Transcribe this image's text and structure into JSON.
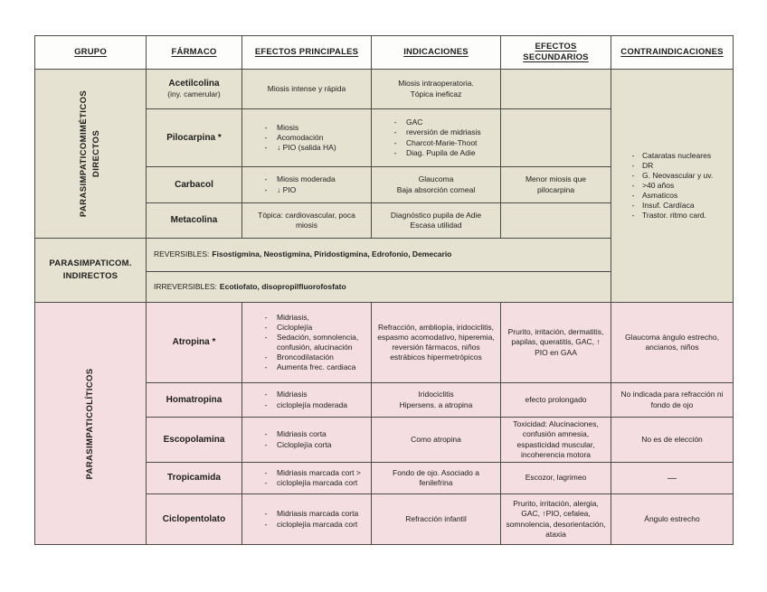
{
  "ui": {
    "dash": "-"
  },
  "colors": {
    "beige": "#e6e2d2",
    "pink": "#f4dee1",
    "border": "#4b4b47",
    "header_bg": "#fdfdfc"
  },
  "header": {
    "grupo": "GRUPO",
    "farmaco": "FÁRMACO",
    "efectos_principales": "EFECTOS PRINCIPALES",
    "indicaciones": "INDICACIONES",
    "efectos_secundarios": "EFECTOS SECUNDARIOS",
    "contraindicaciones": "CONTRAINDICACIONES"
  },
  "directos": {
    "group_label": "PARASIMPATICOMIMÉTICOS\nDIRECTOS",
    "contraindicaciones": [
      "Cataratas nucleares",
      "DR",
      "G. Neovascular y uv.",
      ">40 años",
      "Asmaticos",
      "Insuf. Cardíaca",
      "Trastor. ritmo card."
    ],
    "acetilcolina": {
      "nombre": "Acetilcolina",
      "nombre_nota": "(iny. camerular)",
      "efectos": "Miosis intense y rápida",
      "indicaciones": "Miosis intraoperatoria.\nTópica ineficaz"
    },
    "pilocarpina": {
      "nombre": "Pilocarpina *",
      "efectos": [
        "Miosis",
        "Acomodación",
        "↓ PIO (salida HA)"
      ],
      "indicaciones": [
        "GAC",
        "reversión de midriasis",
        "Charcot-Marie-Thoot",
        "Diag. Pupila de Adie"
      ]
    },
    "carbacol": {
      "nombre": "Carbacol",
      "efectos": [
        "Miosis moderada",
        "↓ PIO"
      ],
      "indicaciones": "Glaucoma\nBaja absorción corneal",
      "secundarios": "Menor miosis que\npilocarpina"
    },
    "metacolina": {
      "nombre": "Metacolina",
      "efectos": "Tópica: cardiovascular, poca\nmiosis",
      "indicaciones": "Diagnóstico pupila de Adie\nEscasa utilidad"
    }
  },
  "indirectos": {
    "group_label": "PARASIMPATICOM.\nINDIRECTOS",
    "reversibles_label": "REVERSIBLES:",
    "reversibles": "Fisostigmina, Neostigmina, Piridostigmina, Edrofonio, Demecario",
    "irreversibles_label": "IRREVERSIBLES:",
    "irreversibles": "Ecotiofato, disopropilfluorofosfato"
  },
  "liticos": {
    "group_label": "PARASIMPATICOLÍTICOS",
    "atropina": {
      "nombre": "Atropina *",
      "efectos": [
        "Midriasis,",
        "Cicloplejía",
        "Sedación, somnolencia, confusión, alucinación",
        "Broncodilatación",
        "Aumenta frec. cardiaca"
      ],
      "indicaciones": "Refracción, ambliopía, iridociclitis, espasmo acomodativo, hiperemia, reversión fármacos, niños estrábicos hipermetrópicos",
      "secundarios": "Prurito, irritación, dermatitis, papilas, queratitis, GAC, ↑ PIO en GAA",
      "contraindicaciones": "Glaucoma ángulo estrecho, ancianos, niños"
    },
    "homatropina": {
      "nombre": "Homatropina",
      "efectos": [
        "Midriasis",
        "cicloplejía moderada"
      ],
      "indicaciones": "Iridociclitis\nHipersens. a atropina",
      "secundarios": "efecto prolongado",
      "contraindicaciones": "No indicada para refracción ni fondo de ojo"
    },
    "escopolamina": {
      "nombre": "Escopolamina",
      "efectos": [
        "Midriasis corta",
        "Cicloplejía corta"
      ],
      "indicaciones": "Como atropina",
      "secundarios": "Toxicidad: Alucinaciones, confusión amnesia, espasticidad muscular, incoherencia motora",
      "contraindicaciones": "No es de elección"
    },
    "tropicamida": {
      "nombre": "Tropicamida",
      "efectos": [
        "Midriasis marcada cort >",
        "cicloplejía marcada cort"
      ],
      "indicaciones": "Fondo de ojo. Asociado a\nfenilefrina",
      "secundarios": "Escozor, lagrimeo",
      "contraindicaciones": "—"
    },
    "ciclopentolato": {
      "nombre": "Ciclopentolato",
      "efectos": [
        "Midriasis marcada corta",
        "cicloplejía marcada cort"
      ],
      "indicaciones": "Refracción infantil",
      "secundarios": "Prurito, irritación, alergia, GAC, ↑PIO, cefalea, somnolencia, desorientación, ataxia",
      "contraindicaciones": "Ángulo estrecho"
    }
  }
}
